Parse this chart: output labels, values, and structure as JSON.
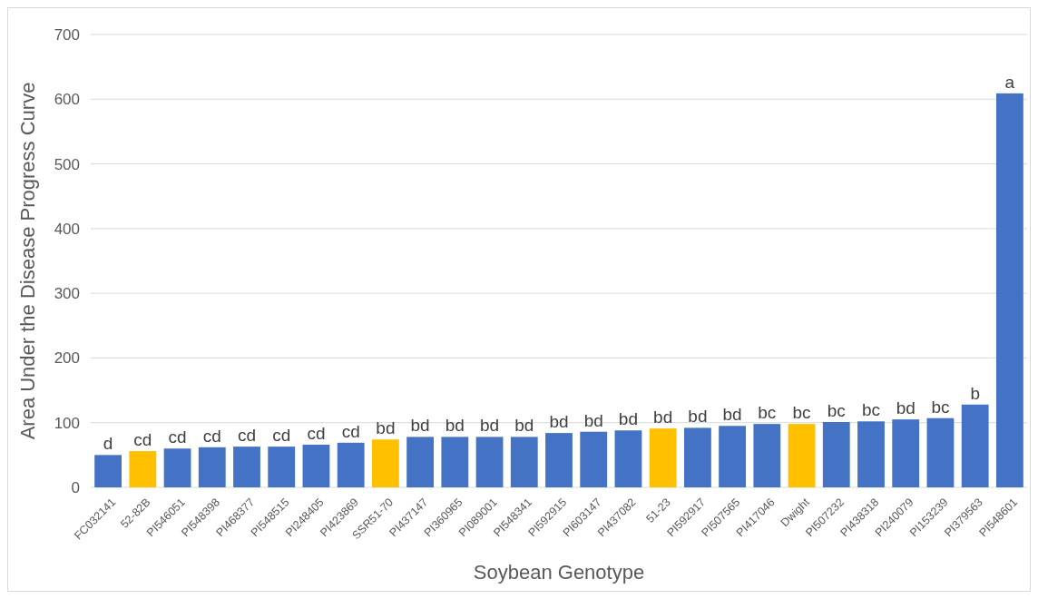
{
  "chart_data": {
    "type": "bar",
    "xlabel": "Soybean Genotype",
    "ylabel": "Area Under the Disease Progress Curve",
    "categories": [
      "FC032141",
      "52-82B",
      "PI546051",
      "PI548398",
      "PI468377",
      "PI548515",
      "PI248405",
      "PI423869",
      "SSR51-70",
      "PI437147",
      "PI360965",
      "PI089001",
      "PI548341",
      "PI592915",
      "PI603147",
      "PI437082",
      "51-23",
      "PI592917",
      "PI507565",
      "PI417046",
      "Dwight",
      "PI507232",
      "PI438318",
      "PI240079",
      "PI153239",
      "PI379563",
      "PI548601"
    ],
    "values": [
      50,
      56,
      60,
      62,
      63,
      63,
      66,
      69,
      74,
      78,
      78,
      78,
      78,
      84,
      86,
      88,
      91,
      92,
      95,
      98,
      98,
      101,
      102,
      105,
      107,
      128,
      609
    ],
    "colors": [
      "#4472c4",
      "#ffc000",
      "#4472c4",
      "#4472c4",
      "#4472c4",
      "#4472c4",
      "#4472c4",
      "#4472c4",
      "#ffc000",
      "#4472c4",
      "#4472c4",
      "#4472c4",
      "#4472c4",
      "#4472c4",
      "#4472c4",
      "#4472c4",
      "#ffc000",
      "#4472c4",
      "#4472c4",
      "#4472c4",
      "#ffc000",
      "#4472c4",
      "#4472c4",
      "#4472c4",
      "#4472c4",
      "#4472c4",
      "#4472c4"
    ],
    "value_labels": [
      "d",
      "cd",
      "cd",
      "cd",
      "cd",
      "cd",
      "cd",
      "cd",
      "bd",
      "bd",
      "bd",
      "bd",
      "bd",
      "bd",
      "bd",
      "bd",
      "bd",
      "bd",
      "bd",
      "bc",
      "bc",
      "bc",
      "bc",
      "bd",
      "bc",
      "b",
      "a"
    ],
    "ylim": [
      0,
      700
    ],
    "yticks": [
      0,
      100,
      200,
      300,
      400,
      500,
      600,
      700
    ],
    "grid": "y"
  }
}
